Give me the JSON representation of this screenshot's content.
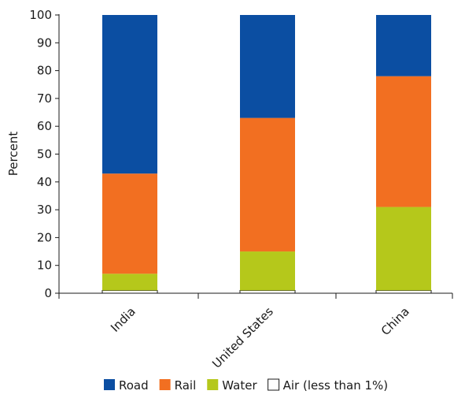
{
  "chart_data": {
    "type": "bar",
    "stacked": true,
    "categories": [
      "India",
      "United States",
      "China"
    ],
    "series": [
      {
        "name": "Air (less than 1%)",
        "color": "#ffffff",
        "values": [
          1,
          1,
          1
        ]
      },
      {
        "name": "Water",
        "color": "#b5c81b",
        "values": [
          6,
          14,
          30
        ]
      },
      {
        "name": "Rail",
        "color": "#f26f21",
        "values": [
          36,
          48,
          47
        ]
      },
      {
        "name": "Road",
        "color": "#0b4ea2",
        "values": [
          57,
          37,
          22
        ]
      }
    ],
    "legend_order": [
      "Road",
      "Rail",
      "Water",
      "Air (less than 1%)"
    ],
    "title": "",
    "xlabel": "",
    "ylabel": "Percent",
    "ylim": [
      0,
      100
    ],
    "yticks": [
      0,
      10,
      20,
      30,
      40,
      50,
      60,
      70,
      80,
      90,
      100
    ],
    "grid": false,
    "legend_position": "bottom"
  }
}
